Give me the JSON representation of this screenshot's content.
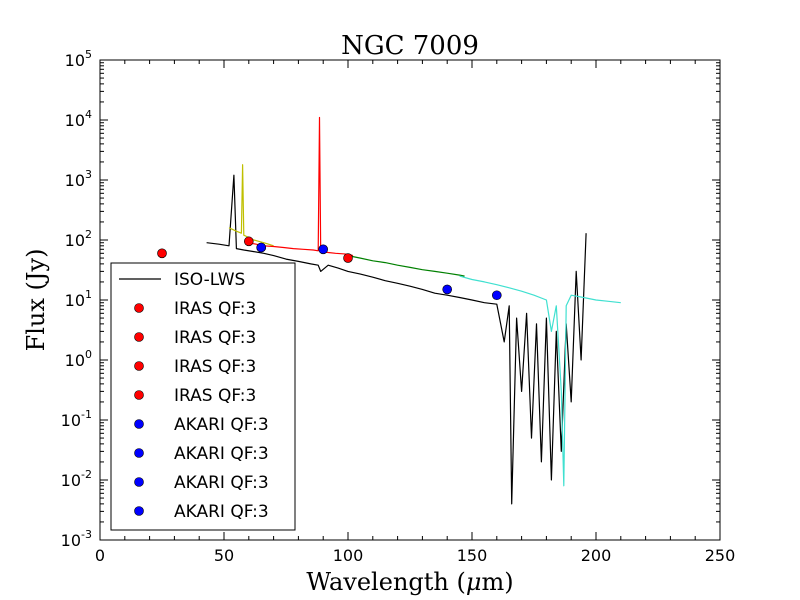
{
  "chart_data": {
    "type": "line",
    "title": "NGC 7009",
    "xlabel_text": "Wavelength (",
    "xlabel_mu": "μ",
    "xlabel_unit": "m)",
    "ylabel": "Flux (Jy)",
    "xlim": [
      0,
      250
    ],
    "ylim": [
      0.001,
      100000
    ],
    "yscale": "log",
    "grid": false,
    "legend_position": "lower-left",
    "x_ticks": [
      0,
      50,
      100,
      150,
      200,
      250
    ],
    "y_tick_exponents": [
      "5",
      "4",
      "3",
      "2",
      "1",
      "0",
      "-1",
      "-2",
      "-3"
    ],
    "y_tick_base": "10",
    "legend": [
      {
        "label": "ISO-LWS",
        "kind": "line",
        "color": "#000000"
      },
      {
        "label": "IRAS QF:3",
        "kind": "marker",
        "color": "#ff0000"
      },
      {
        "label": "IRAS QF:3",
        "kind": "marker",
        "color": "#ff0000"
      },
      {
        "label": "IRAS QF:3",
        "kind": "marker",
        "color": "#ff0000"
      },
      {
        "label": "IRAS QF:3",
        "kind": "marker",
        "color": "#ff0000"
      },
      {
        "label": "AKARI QF:3",
        "kind": "marker",
        "color": "#0000ff"
      },
      {
        "label": "AKARI QF:3",
        "kind": "marker",
        "color": "#0000ff"
      },
      {
        "label": "AKARI QF:3",
        "kind": "marker",
        "color": "#0000ff"
      },
      {
        "label": "AKARI QF:3",
        "kind": "marker",
        "color": "#0000ff"
      }
    ],
    "series": [
      {
        "name": "ISO-LWS",
        "color": "#000000",
        "x": [
          43,
          48,
          52,
          54,
          55,
          58,
          62,
          66,
          70,
          75,
          80,
          85,
          88,
          89,
          92,
          96,
          100,
          105,
          110,
          115,
          120,
          125,
          130,
          135,
          140,
          145,
          150,
          155,
          160,
          163,
          165,
          166,
          168,
          170,
          172,
          174,
          176,
          178,
          180,
          182,
          184,
          186,
          188,
          190,
          192,
          194,
          196
        ],
        "y": [
          90,
          85,
          80,
          1200,
          72,
          68,
          64,
          60,
          55,
          48,
          44,
          40,
          38,
          30,
          38,
          34,
          30,
          27,
          24,
          21,
          19,
          17,
          15,
          13,
          12,
          11,
          10,
          9,
          8.5,
          2,
          8,
          0.004,
          5,
          0.3,
          6,
          0.05,
          4,
          0.02,
          5,
          0.01,
          3,
          0.03,
          4,
          0.2,
          30,
          1,
          130
        ]
      },
      {
        "name": "",
        "color": "#bfbf00",
        "x": [
          52,
          55,
          57,
          57.5,
          58,
          60,
          62,
          64,
          66,
          68,
          70
        ],
        "y": [
          160,
          140,
          130,
          1800,
          120,
          110,
          100,
          95,
          90,
          85,
          80
        ]
      },
      {
        "name": "",
        "color": "#ff0000",
        "x": [
          60,
          63,
          66,
          70,
          74,
          78,
          82,
          86,
          88,
          88.5,
          89,
          92,
          95,
          100,
          102
        ],
        "y": [
          90,
          85,
          80,
          78,
          75,
          72,
          70,
          68,
          66,
          11000,
          65,
          62,
          60,
          58,
          55
        ]
      },
      {
        "name": "",
        "color": "#008000",
        "x": [
          100,
          105,
          110,
          115,
          120,
          125,
          130,
          135,
          140,
          145,
          147
        ],
        "y": [
          55,
          50,
          45,
          42,
          38,
          35,
          32,
          30,
          28,
          26,
          25
        ]
      },
      {
        "name": "",
        "color": "#40e0d0",
        "x": [
          145,
          150,
          155,
          160,
          165,
          170,
          175,
          180,
          182,
          184,
          186,
          187,
          188,
          190,
          195,
          200,
          205,
          210
        ],
        "y": [
          25,
          22,
          20,
          18,
          16,
          14,
          12,
          10,
          3,
          8,
          0.3,
          0.008,
          8,
          12,
          11,
          10,
          9.5,
          9
        ]
      }
    ],
    "points": [
      {
        "label": "IRAS QF:3",
        "color": "#ff0000",
        "x": 25,
        "y": 60
      },
      {
        "label": "IRAS QF:3",
        "color": "#ff0000",
        "x": 60,
        "y": 95
      },
      {
        "label": "IRAS QF:3",
        "color": "#ff0000",
        "x": 65,
        "y": 75
      },
      {
        "label": "IRAS QF:3",
        "color": "#ff0000",
        "x": 100,
        "y": 50
      },
      {
        "label": "AKARI QF:3",
        "color": "#0000ff",
        "x": 65,
        "y": 75
      },
      {
        "label": "AKARI QF:3",
        "color": "#0000ff",
        "x": 90,
        "y": 70
      },
      {
        "label": "AKARI QF:3",
        "color": "#0000ff",
        "x": 140,
        "y": 15
      },
      {
        "label": "AKARI QF:3",
        "color": "#0000ff",
        "x": 160,
        "y": 12
      }
    ]
  }
}
